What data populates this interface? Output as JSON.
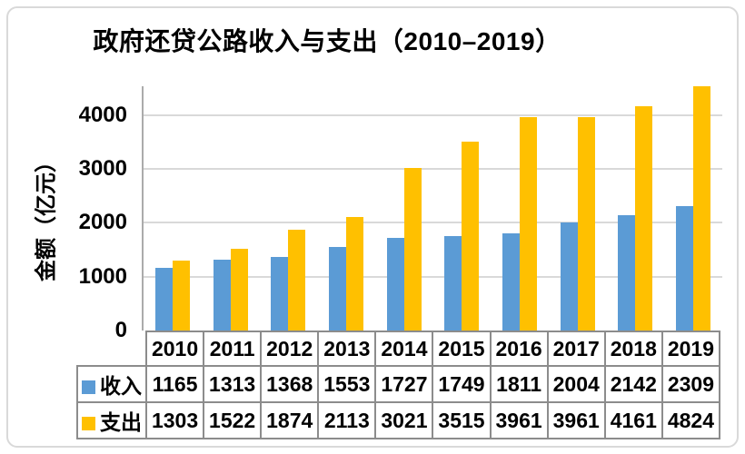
{
  "chart_data": {
    "type": "bar",
    "title": "政府还贷公路收入与支出（2010–2019）",
    "ylabel": "金额（亿元）",
    "categories": [
      "2010",
      "2011",
      "2012",
      "2013",
      "2014",
      "2015",
      "2016",
      "2017",
      "2018",
      "2019"
    ],
    "series": [
      {
        "key": "income",
        "name": "收入",
        "color": "#5B9BD5",
        "values": [
          1165,
          1313,
          1368,
          1553,
          1727,
          1749,
          1811,
          2004,
          2142,
          2309
        ]
      },
      {
        "key": "expense",
        "name": "支出",
        "color": "#FFC000",
        "values": [
          1303,
          1522,
          1874,
          2113,
          3021,
          3515,
          3961,
          3961,
          4161,
          4824
        ]
      }
    ],
    "yticks": [
      0,
      1000,
      2000,
      3000,
      4000
    ],
    "ylim": [
      0,
      4540
    ],
    "grid": true,
    "legend_position": "table-left",
    "colors": {
      "gridline": "#d9d9d9",
      "y_axis_line": "#ababab",
      "table_border": "#8c8c8c",
      "frame_border": "#d9d9d9",
      "text": "#000000",
      "background": "#ffffff"
    }
  }
}
